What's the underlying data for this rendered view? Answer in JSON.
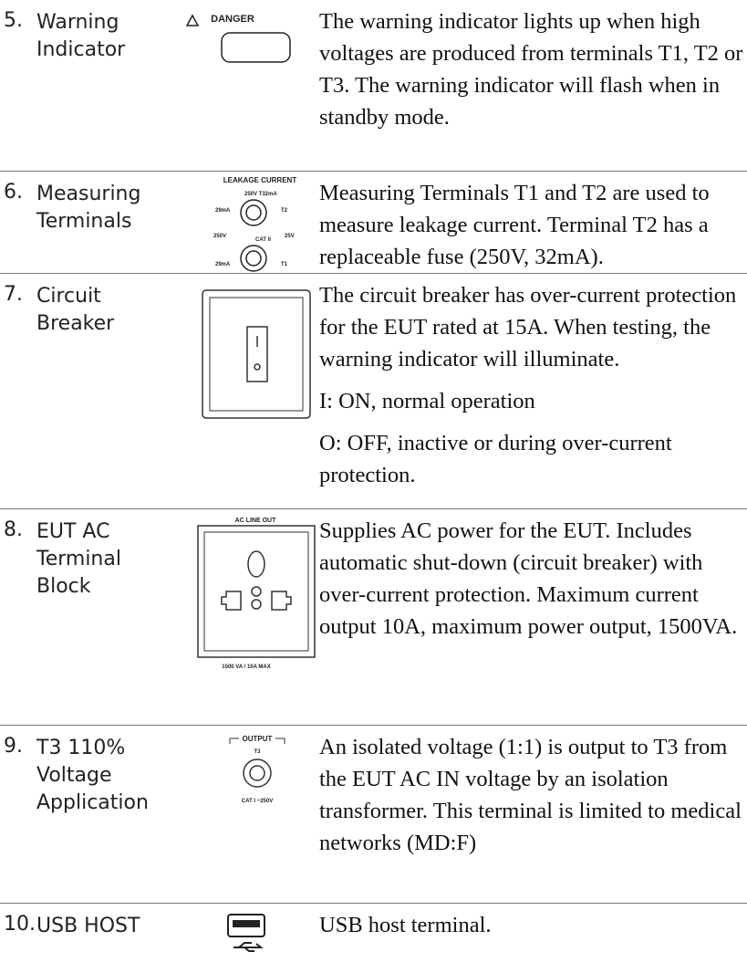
{
  "rows": [
    {
      "number": "5.",
      "name": "Warning Indicator",
      "icon_labels": [
        "DANGER"
      ],
      "description": [
        "The warning indicator lights up when high voltages are produced from terminals T1, T2 or T3. The warning indicator will flash when in standby mode."
      ]
    },
    {
      "number": "6.",
      "name": "Measuring Terminals",
      "icon_labels": [
        "LEAKAGE CURRENT",
        "250V T32mA",
        "29mA",
        "T2",
        "250V",
        "CAT II",
        "25V",
        "29mA",
        "T1"
      ],
      "description": [
        "Measuring Terminals T1 and T2 are used to measure leakage current. Terminal T2 has a replaceable fuse (250V, 32mA)."
      ]
    },
    {
      "number": "7.",
      "name": "Circuit Breaker",
      "icon_labels": [],
      "description": [
        "The circuit breaker has over-current protection for the EUT rated at 15A. When testing, the warning indicator will illuminate.",
        "I: ON, normal operation",
        "O: OFF, inactive or during over-current protection."
      ]
    },
    {
      "number": "8.",
      "name": "EUT AC Terminal Block",
      "icon_labels": [
        "AC LINE OUT",
        "1500 VA / 10A  MAX"
      ],
      "description": [
        "Supplies AC power for the EUT. Includes automatic shut-down (circuit breaker) with over-current protection. Maximum current output 10A, maximum power output, 1500VA."
      ]
    },
    {
      "number": "9.",
      "name": "T3 110% Voltage Application",
      "icon_labels": [
        "OUTPUT",
        "T3",
        "CAT I ~250V"
      ],
      "description": [
        "An isolated voltage (1:1) is output to T3 from the EUT AC IN voltage by an isolation transformer. This terminal is limited to medical networks (MD:F)"
      ]
    },
    {
      "number": "10.",
      "name": "USB HOST",
      "icon_labels": [],
      "description": [
        "USB host terminal."
      ]
    }
  ]
}
